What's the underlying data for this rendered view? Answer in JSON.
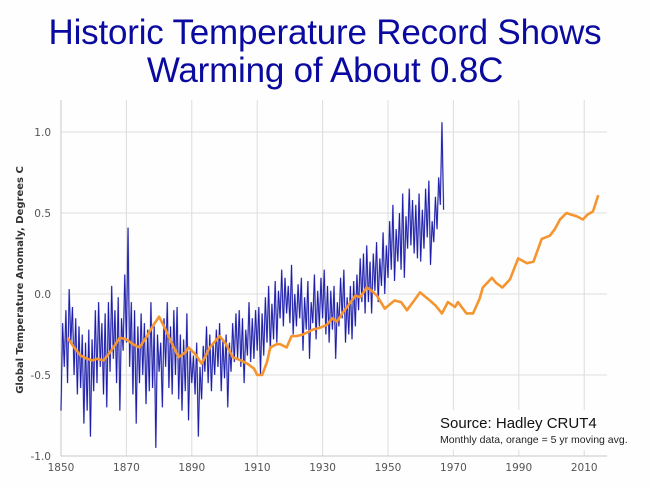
{
  "title_line1": "Historic Temperature Record Shows",
  "title_line2": "Warming of About 0.8C",
  "source_title": "Source:  Hadley CRUT4",
  "source_note": "Monthly  data, orange = 5 yr moving avg.",
  "colors": {
    "title": "#0a0aa0",
    "monthly": "#1c1ca8",
    "moving_avg": "#f59530",
    "grid": "#dddddd"
  },
  "chart_data": {
    "type": "line",
    "title": "Historic Temperature Record Shows Warming of About 0.8C",
    "xlabel": "",
    "ylabel": "Global Temperature Anomaly, Degrees C",
    "xlim": [
      1850,
      2017
    ],
    "ylim": [
      -1.0,
      1.2
    ],
    "x_ticks": [
      1850,
      1870,
      1890,
      1910,
      1930,
      1950,
      1970,
      1990,
      2010
    ],
    "y_ticks": [
      -1.0,
      -0.5,
      0.0,
      0.5,
      1.0
    ],
    "y_tick_labels": [
      "-1.0",
      "-0.5",
      "0.0",
      "0.5",
      "1.0"
    ],
    "grid": true,
    "annotation": [
      "Source:  Hadley CRUT4",
      "Monthly  data, orange = 5 yr moving avg."
    ],
    "series": [
      {
        "name": "5 yr moving avg.",
        "color": "orange",
        "x": [
          1852,
          1854,
          1856,
          1858,
          1859.5,
          1861,
          1863,
          1865,
          1868,
          1870,
          1872,
          1874,
          1876,
          1878,
          1880,
          1882,
          1884,
          1886,
          1888,
          1889,
          1891,
          1893,
          1895.5,
          1898.5,
          1900.5,
          1902.5,
          1905,
          1907,
          1909,
          1910,
          1911.5,
          1913,
          1914,
          1916,
          1917,
          1919,
          1920.5,
          1922,
          1924,
          1927,
          1929,
          1931.3,
          1933,
          1934.4,
          1936,
          1937.5,
          1940,
          1941.5,
          1943.5,
          1945,
          1946.6,
          1949,
          1952,
          1954,
          1955.8,
          1958,
          1959.8,
          1961,
          1962.8,
          1964.5,
          1966.5,
          1968.3,
          1970.5,
          1971.4,
          1974,
          1976,
          1978,
          1979,
          1981.8,
          1983,
          1985,
          1987.3,
          1989.8,
          1992.5,
          1994.5,
          1997,
          1999.5,
          2001,
          2002.6,
          2004.6,
          2006,
          2007.7,
          2009.6,
          2011,
          2012.7,
          2014.3
        ],
        "y": [
          -0.27,
          -0.33,
          -0.38,
          -0.4,
          -0.41,
          -0.4,
          -0.41,
          -0.36,
          -0.27,
          -0.28,
          -0.31,
          -0.33,
          -0.27,
          -0.2,
          -0.14,
          -0.22,
          -0.31,
          -0.39,
          -0.36,
          -0.33,
          -0.37,
          -0.43,
          -0.33,
          -0.26,
          -0.31,
          -0.39,
          -0.41,
          -0.43,
          -0.46,
          -0.5,
          -0.5,
          -0.42,
          -0.33,
          -0.31,
          -0.31,
          -0.33,
          -0.26,
          -0.26,
          -0.25,
          -0.22,
          -0.21,
          -0.19,
          -0.15,
          -0.17,
          -0.12,
          -0.08,
          -0.01,
          -0.02,
          0.04,
          0.02,
          -0.01,
          -0.09,
          -0.04,
          -0.05,
          -0.1,
          -0.04,
          0.01,
          -0.01,
          -0.04,
          -0.07,
          -0.12,
          -0.05,
          -0.08,
          -0.05,
          -0.12,
          -0.12,
          -0.03,
          0.04,
          0.1,
          0.07,
          0.04,
          0.09,
          0.22,
          0.19,
          0.2,
          0.34,
          0.36,
          0.4,
          0.46,
          0.5,
          0.49,
          0.48,
          0.46,
          0.49,
          0.51,
          0.61
        ]
      },
      {
        "name": "Monthly data",
        "color": "blue",
        "x_start": 1850,
        "x_step": 0.5,
        "y": [
          -0.72,
          -0.18,
          -0.45,
          -0.1,
          -0.55,
          0.03,
          -0.3,
          -0.08,
          -0.5,
          -0.15,
          -0.62,
          -0.2,
          -0.58,
          -0.25,
          -0.8,
          -0.3,
          -0.72,
          -0.22,
          -0.88,
          -0.28,
          -0.6,
          -0.1,
          -0.55,
          -0.05,
          -0.45,
          -0.18,
          -0.62,
          -0.12,
          -0.7,
          -0.05,
          -0.48,
          0.05,
          -0.4,
          -0.1,
          -0.55,
          -0.02,
          -0.72,
          -0.15,
          -0.35,
          0.12,
          -0.3,
          0.41,
          -0.45,
          -0.05,
          -0.62,
          -0.1,
          -0.8,
          -0.2,
          -0.55,
          -0.12,
          -0.5,
          -0.18,
          -0.68,
          -0.22,
          -0.6,
          -0.05,
          -0.58,
          -0.2,
          -0.95,
          -0.25,
          -0.48,
          -0.3,
          -0.7,
          -0.15,
          -0.45,
          -0.05,
          -0.58,
          -0.2,
          -0.62,
          -0.1,
          -0.5,
          -0.08,
          -0.65,
          -0.25,
          -0.72,
          -0.28,
          -0.6,
          -0.12,
          -0.78,
          -0.35,
          -0.55,
          -0.38,
          -0.62,
          -0.3,
          -0.88,
          -0.45,
          -0.65,
          -0.32,
          -0.48,
          -0.2,
          -0.55,
          -0.25,
          -0.6,
          -0.3,
          -0.5,
          -0.22,
          -0.45,
          -0.18,
          -0.6,
          -0.28,
          -0.52,
          -0.25,
          -0.7,
          -0.3,
          -0.48,
          -0.18,
          -0.42,
          -0.12,
          -0.4,
          -0.1,
          -0.45,
          -0.15,
          -0.55,
          -0.22,
          -0.38,
          -0.05,
          -0.42,
          -0.15,
          -0.4,
          -0.1,
          -0.35,
          -0.08,
          -0.5,
          -0.12,
          -0.38,
          -0.02,
          -0.3,
          0.05,
          -0.35,
          -0.06,
          -0.28,
          0.08,
          -0.3,
          0.02,
          -0.15,
          0.15,
          -0.2,
          0.1,
          -0.12,
          0.05,
          -0.18,
          0.18,
          -0.25,
          0.0,
          -0.2,
          0.06,
          -0.15,
          0.1,
          -0.35,
          -0.02,
          -0.22,
          0.08,
          -0.4,
          -0.05,
          -0.18,
          0.12,
          -0.28,
          0.02,
          -0.2,
          0.1,
          -0.15,
          0.15,
          -0.25,
          0.05,
          -0.3,
          0.02,
          -0.22,
          0.05,
          -0.4,
          -0.05,
          -0.2,
          0.1,
          -0.15,
          0.15,
          -0.3,
          -0.02,
          -0.25,
          0.05,
          -0.28,
          0.08,
          -0.2,
          0.12,
          -0.1,
          0.22,
          -0.05,
          0.25,
          -0.12,
          0.3,
          -0.05,
          0.2,
          -0.12,
          0.25,
          0.02,
          0.32,
          -0.05,
          0.22,
          0.05,
          0.38,
          0.0,
          0.3,
          0.1,
          0.45,
          0.15,
          0.55,
          0.08,
          0.4,
          0.2,
          0.5,
          0.15,
          0.62,
          0.1,
          0.48,
          0.28,
          0.65,
          0.3,
          0.58,
          0.25,
          0.55,
          0.22,
          0.62,
          0.2,
          0.52,
          0.28,
          0.65,
          0.35,
          0.7,
          0.18,
          0.45,
          0.32,
          0.6,
          0.4,
          0.72,
          0.55,
          1.06,
          0.52
        ]
      }
    ]
  }
}
